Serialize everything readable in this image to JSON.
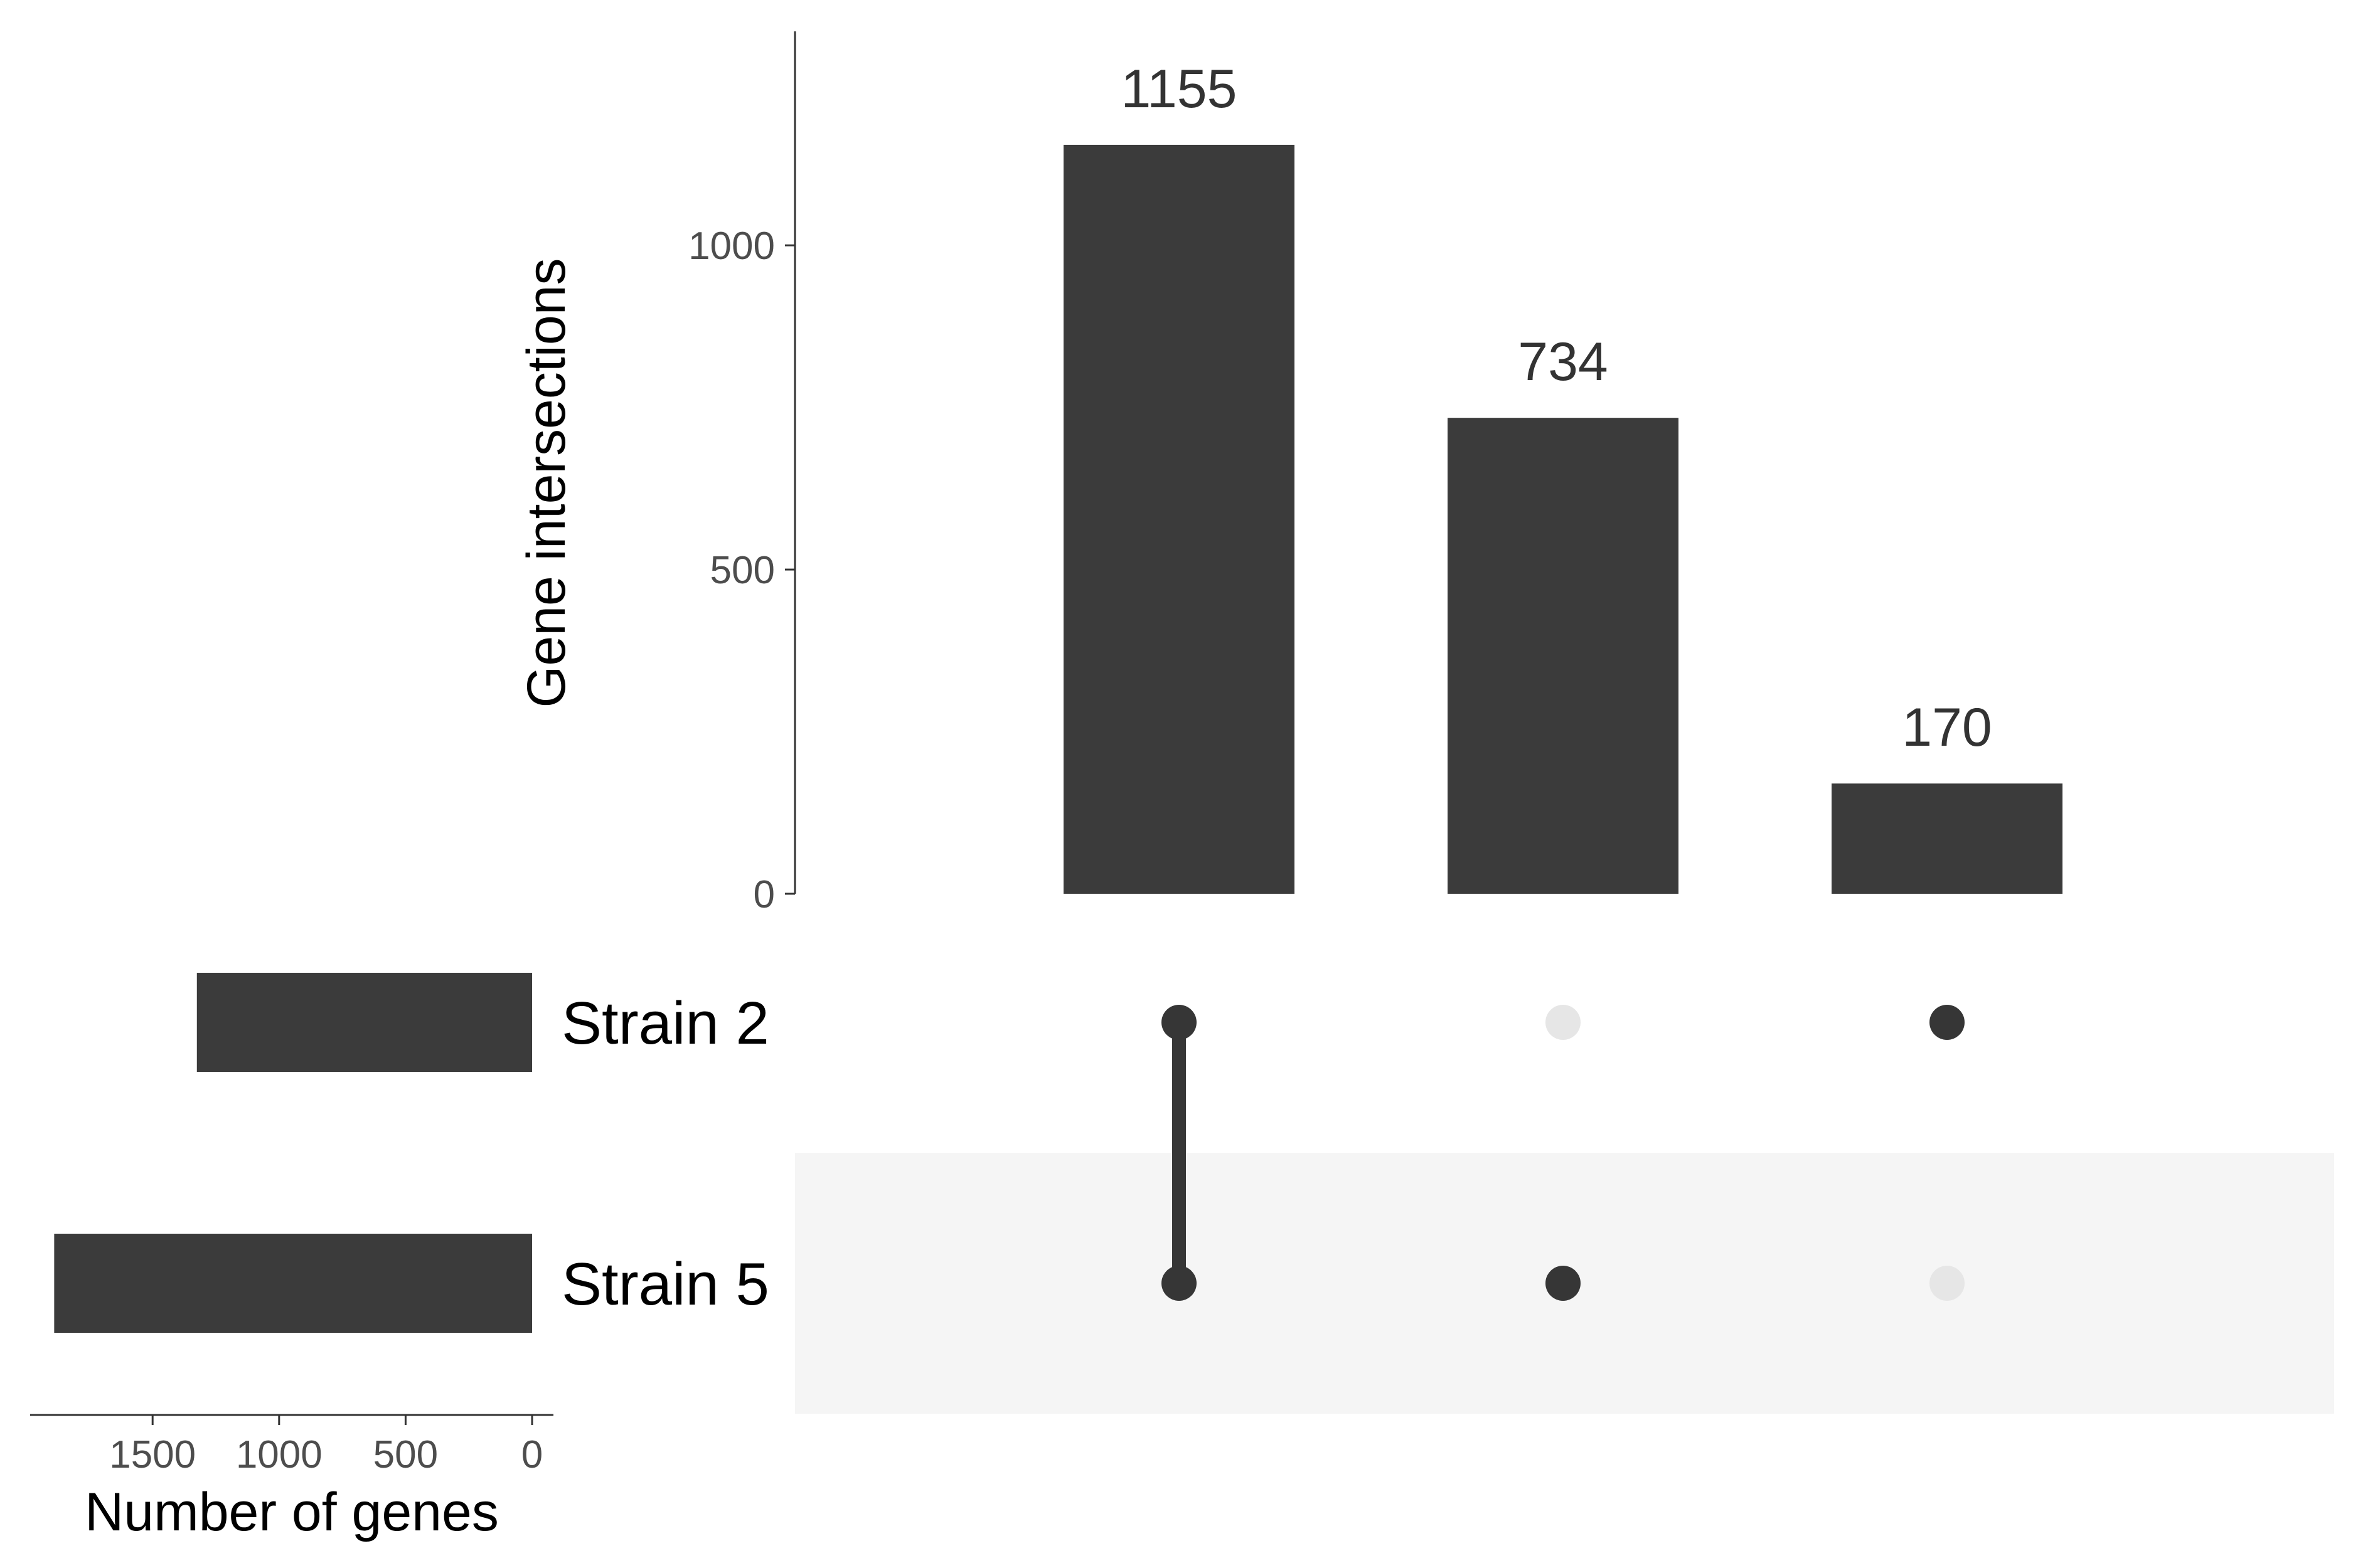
{
  "chart_data": {
    "type": "bar",
    "subtype": "upset",
    "title": "",
    "colors": {
      "bar": "#3b3b3b",
      "dot_active": "#363636",
      "dot_inactive": "#e6e6e6",
      "row_shade": "#f5f5f5",
      "axis": "#333333"
    },
    "intersections": {
      "ylabel": "Gene intersections",
      "ylim": [
        0,
        1330
      ],
      "yticks": [
        0,
        500,
        1000
      ],
      "values": [
        1155,
        734,
        170
      ],
      "value_labels": [
        "1155",
        "734",
        "170"
      ],
      "members": [
        [
          "Strain 2",
          "Strain 5"
        ],
        [
          "Strain 5"
        ],
        [
          "Strain 2"
        ]
      ]
    },
    "sets": {
      "xlabel": "Number of genes",
      "names": [
        "Strain 2",
        "Strain 5"
      ],
      "sizes": [
        1325,
        1889
      ],
      "xlim": [
        0,
        1960
      ],
      "xticks": [
        1500,
        1000,
        500,
        0
      ],
      "reversed": true
    },
    "grid": false,
    "legend": "none"
  }
}
